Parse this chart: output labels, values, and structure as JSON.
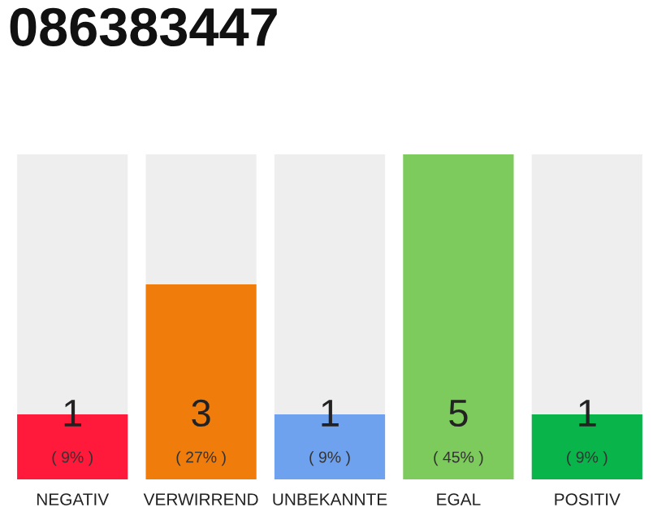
{
  "chart_data": {
    "type": "bar",
    "title": "086383447",
    "stacked": true,
    "categories": [
      "NEGATIV",
      "VERWIRREND",
      "UNBEKANNTE",
      "EGAL",
      "POSITIV"
    ],
    "series": [
      {
        "colors": [
          "#ff1a3c",
          "#f07d0b",
          "#6ea2ef",
          "#7dcb5c",
          "#09b44a"
        ],
        "values": [
          1,
          3,
          1,
          5,
          1
        ],
        "value_labels": [
          "1\n( 9% )",
          "3\n( 27% )",
          "1\n( 9% )",
          "5\n( 45% )",
          "1\n( 9% )"
        ]
      },
      {
        "color": "#eeeeee",
        "values": [
          4,
          2,
          4,
          0,
          4
        ]
      }
    ],
    "grid": false,
    "legend": false
  }
}
